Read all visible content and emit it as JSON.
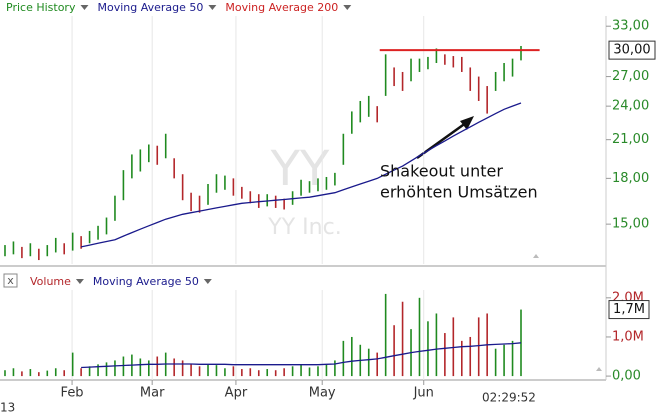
{
  "chart_data": [
    {
      "type": "range_bar",
      "legend": [
        "Price History",
        "Moving Average 50",
        "Moving Average 200"
      ],
      "watermark": [
        "YY",
        "YY Inc."
      ],
      "log_y": true,
      "grid": true,
      "xlim": [
        -0.59,
        70.93
      ],
      "ylim": [
        12.9,
        35.2
      ],
      "yticks": [
        {
          "value": 15,
          "label": "15,00"
        },
        {
          "value": 18,
          "label": "18,00"
        },
        {
          "value": 21,
          "label": "21,00"
        },
        {
          "value": 24,
          "label": "24,00"
        },
        {
          "value": 27,
          "label": "27,00"
        },
        {
          "value": 33,
          "label": "33,00"
        }
      ],
      "xticks": [
        {
          "value": 7.93,
          "label": "Feb"
        },
        {
          "value": 17.4,
          "label": "Mar"
        },
        {
          "value": 27.3,
          "label": "Apr"
        },
        {
          "value": 37.5,
          "label": "May"
        },
        {
          "value": 49.5,
          "label": "Jun"
        }
      ],
      "last_value": 30,
      "last_value_label": "30,00",
      "resistance": {
        "value": 30,
        "x": [
          44.3,
          63.2
        ],
        "color": "#dd2222"
      },
      "annotation": {
        "lines": [
          "Shakeout unter",
          "erhöhten Umsätzen"
        ]
      },
      "series": [
        {
          "name": "Price History",
          "up_color": "#1f8a1f",
          "down_color": "#b3262a",
          "high": [
            13.8,
            14.0,
            13.7,
            13.9,
            13.6,
            13.8,
            14.2,
            13.9,
            14.5,
            14.3,
            14.6,
            14.9,
            15.4,
            16.8,
            18.6,
            19.8,
            20.2,
            20.6,
            20.5,
            21.5,
            19.5,
            18.3,
            17.0,
            16.8,
            17.6,
            18.3,
            18.2,
            18.0,
            17.4,
            17.1,
            16.9,
            16.9,
            16.8,
            16.6,
            17.1,
            17.9,
            17.8,
            18.0,
            18.1,
            18.4,
            21.5,
            23.5,
            24.5,
            25.0,
            24.0,
            29.5,
            28.0,
            27.5,
            29.0,
            29.0,
            29.2,
            30.2,
            29.5,
            29.3,
            29.2,
            28.0,
            27.0,
            26.0,
            27.5,
            28.5,
            29.0,
            30.5
          ],
          "low": [
            13.2,
            13.3,
            13.1,
            13.2,
            13.0,
            13.2,
            13.4,
            13.3,
            13.5,
            13.6,
            13.9,
            14.1,
            14.4,
            15.2,
            16.5,
            18.0,
            18.5,
            19.2,
            19.0,
            19.5,
            18.0,
            16.5,
            15.8,
            15.7,
            16.2,
            17.0,
            17.2,
            16.8,
            16.6,
            16.3,
            16.0,
            16.1,
            16.0,
            15.9,
            16.2,
            16.8,
            17.0,
            17.1,
            17.2,
            17.5,
            19.0,
            21.5,
            22.5,
            23.0,
            22.5,
            25.0,
            26.0,
            25.5,
            26.5,
            27.5,
            27.8,
            28.5,
            28.3,
            28.0,
            27.5,
            25.5,
            24.5,
            23.3,
            25.5,
            26.5,
            27.0,
            28.8
          ]
        },
        {
          "name": "Moving Average 50",
          "color": "#1a1a8c",
          "values": [
            null,
            null,
            null,
            null,
            null,
            null,
            null,
            null,
            null,
            13.7,
            13.8,
            13.9,
            14.0,
            14.1,
            14.3,
            14.5,
            14.7,
            14.9,
            15.1,
            15.3,
            15.45,
            15.6,
            15.7,
            15.8,
            15.9,
            16.0,
            16.1,
            16.2,
            16.3,
            16.35,
            16.4,
            16.45,
            16.5,
            16.55,
            16.6,
            16.65,
            16.7,
            16.8,
            16.9,
            17.0,
            17.2,
            17.4,
            17.6,
            17.8,
            18.0,
            18.3,
            18.6,
            18.9,
            19.3,
            19.7,
            20.1,
            20.5,
            20.9,
            21.3,
            21.7,
            22.1,
            22.5,
            22.9,
            23.3,
            23.7,
            24.0,
            24.3
          ]
        },
        {
          "name": "Moving Average 200",
          "color": "#cc2222"
        }
      ]
    },
    {
      "type": "bar",
      "legend": [
        "Volume",
        "Moving Average 50"
      ],
      "xlim": [
        -0.59,
        70.93
      ],
      "ylim": [
        -0.1,
        2.2
      ],
      "yticks": [
        {
          "value": 0,
          "label": "0,00"
        },
        {
          "value": 1,
          "label": "1,0M"
        },
        {
          "value": 2,
          "label": "2,0M"
        }
      ],
      "last_value": 1.7,
      "last_value_label": "1,7M",
      "time": "02:29:52",
      "date_fragment": "13",
      "series": [
        {
          "name": "Volume",
          "values": [
            0.15,
            0.2,
            0.12,
            0.18,
            0.1,
            0.14,
            0.2,
            0.15,
            0.6,
            0.2,
            0.25,
            0.3,
            0.35,
            0.4,
            0.5,
            0.55,
            0.45,
            0.4,
            0.5,
            0.6,
            0.45,
            0.4,
            0.3,
            0.25,
            0.3,
            0.28,
            0.2,
            0.25,
            0.18,
            0.2,
            0.15,
            0.18,
            0.15,
            0.2,
            0.25,
            0.3,
            0.22,
            0.25,
            0.3,
            0.4,
            0.9,
            1.0,
            0.8,
            0.7,
            0.6,
            2.1,
            1.3,
            1.9,
            1.2,
            2.0,
            1.4,
            1.6,
            1.1,
            1.5,
            0.9,
            1.0,
            1.5,
            1.6,
            0.7,
            0.8,
            0.9,
            1.7
          ]
        },
        {
          "name": "Moving Average 50",
          "color": "#1a1a8c",
          "values": [
            null,
            null,
            null,
            null,
            null,
            null,
            null,
            null,
            null,
            0.22,
            0.23,
            0.24,
            0.25,
            0.26,
            0.27,
            0.28,
            0.29,
            0.3,
            0.3,
            0.31,
            0.31,
            0.31,
            0.31,
            0.3,
            0.3,
            0.3,
            0.3,
            0.29,
            0.29,
            0.29,
            0.29,
            0.29,
            0.29,
            0.29,
            0.29,
            0.29,
            0.29,
            0.29,
            0.3,
            0.31,
            0.35,
            0.38,
            0.4,
            0.42,
            0.44,
            0.48,
            0.52,
            0.56,
            0.6,
            0.63,
            0.66,
            0.69,
            0.71,
            0.73,
            0.75,
            0.76,
            0.78,
            0.8,
            0.81,
            0.82,
            0.83,
            0.85
          ]
        }
      ]
    }
  ]
}
